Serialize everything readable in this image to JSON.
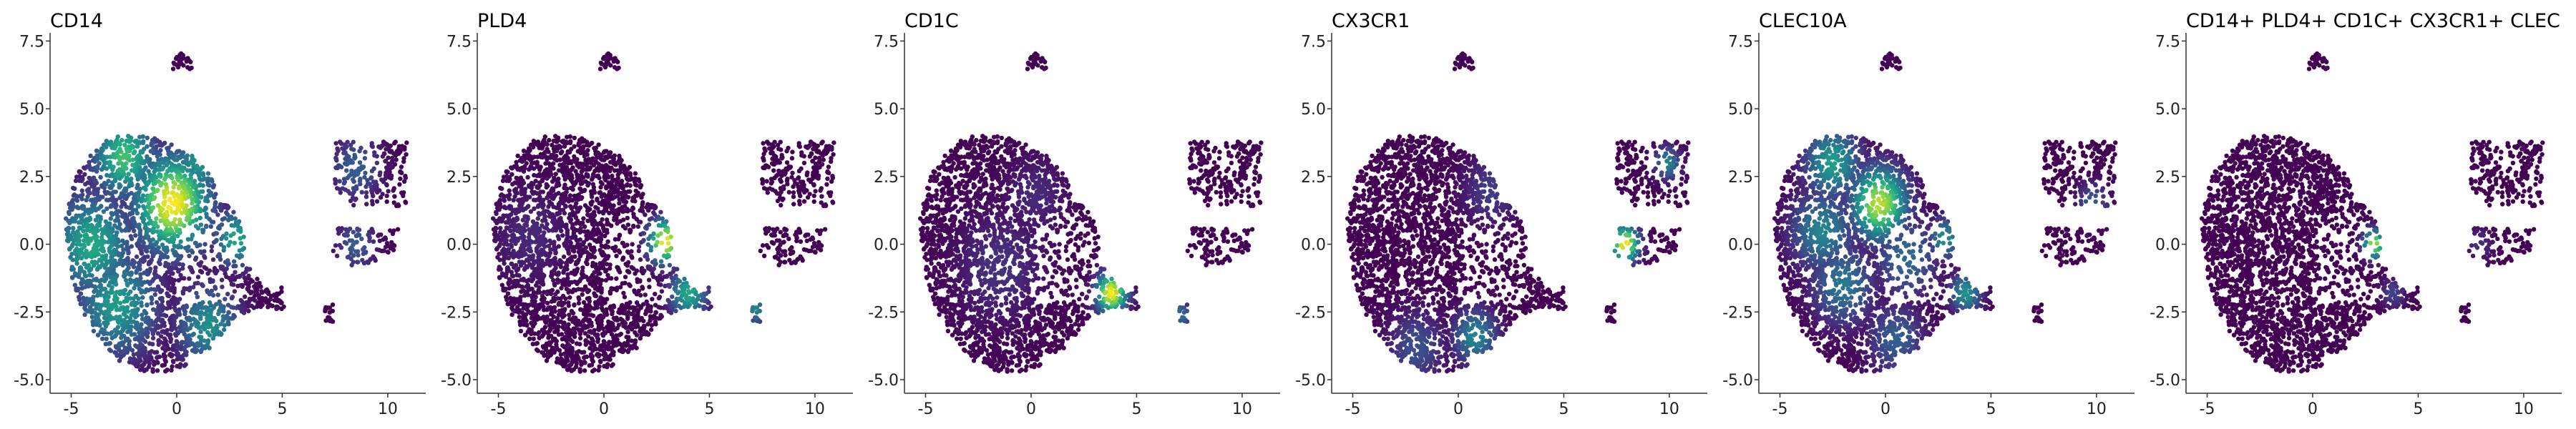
{
  "chart_data": [
    {
      "type": "scatter",
      "title": "CD14",
      "xlim": [
        -6,
        11.8
      ],
      "ylim": [
        -5.5,
        7.8
      ],
      "xticks": [
        -5,
        0,
        5,
        10
      ],
      "yticks": [
        -5.0,
        -2.5,
        0.0,
        2.5,
        5.0,
        7.5
      ],
      "xtick_labels": [
        "-5",
        "0",
        "5",
        "10"
      ],
      "ytick_labels": [
        "-5.0",
        "-2.5",
        "0.0",
        "2.5",
        "5.0",
        "7.5"
      ],
      "colormap": "viridis",
      "hotspots": [
        {
          "x": -0.2,
          "y": 1.5,
          "spread": 1.2,
          "level": 1.0
        },
        {
          "x": -2.5,
          "y": 3.2,
          "spread": 1.0,
          "level": 0.7
        },
        {
          "x": -4.0,
          "y": 0.0,
          "spread": 1.3,
          "level": 0.6
        },
        {
          "x": -2.8,
          "y": -2.2,
          "spread": 1.3,
          "level": 0.55
        },
        {
          "x": 1.5,
          "y": -3.0,
          "spread": 1.0,
          "level": 0.5
        },
        {
          "x": 2.8,
          "y": 0.2,
          "spread": 0.7,
          "level": 0.6
        },
        {
          "x": 1.0,
          "y": 3.0,
          "spread": 0.9,
          "level": 0.5
        },
        {
          "x": 8.5,
          "y": 2.8,
          "spread": 0.8,
          "level": 0.3
        },
        {
          "x": 8.5,
          "y": 0.0,
          "spread": 0.6,
          "level": 0.3
        }
      ]
    },
    {
      "type": "scatter",
      "title": "PLD4",
      "xlim": [
        -6,
        11.8
      ],
      "ylim": [
        -5.5,
        7.8
      ],
      "xticks": [
        -5,
        0,
        5,
        10
      ],
      "yticks": [
        -5.0,
        -2.5,
        0.0,
        2.5,
        5.0,
        7.5
      ],
      "xtick_labels": [
        "-5",
        "0",
        "5",
        "10"
      ],
      "ytick_labels": [
        "-5.0",
        "-2.5",
        "0.0",
        "2.5",
        "5.0",
        "7.5"
      ],
      "colormap": "viridis",
      "hotspots": [
        {
          "x": 2.9,
          "y": 0.1,
          "spread": 0.55,
          "level": 1.0
        },
        {
          "x": 4.0,
          "y": -1.8,
          "spread": 0.6,
          "level": 0.6
        },
        {
          "x": 7.2,
          "y": -2.4,
          "spread": 0.35,
          "level": 0.45
        },
        {
          "x": -3.5,
          "y": 0.3,
          "spread": 1.2,
          "level": 0.12
        }
      ]
    },
    {
      "type": "scatter",
      "title": "CD1C",
      "xlim": [
        -6,
        11.8
      ],
      "ylim": [
        -5.5,
        7.8
      ],
      "xticks": [
        -5,
        0,
        5,
        10
      ],
      "yticks": [
        -5.0,
        -2.5,
        0.0,
        2.5,
        5.0,
        7.5
      ],
      "xtick_labels": [
        "-5",
        "0",
        "5",
        "10"
      ],
      "ytick_labels": [
        "-5.0",
        "-2.5",
        "0.0",
        "2.5",
        "5.0",
        "7.5"
      ],
      "colormap": "viridis",
      "hotspots": [
        {
          "x": 3.8,
          "y": -1.8,
          "spread": 0.5,
          "level": 1.0
        },
        {
          "x": 7.1,
          "y": -2.6,
          "spread": 0.35,
          "level": 0.35
        },
        {
          "x": -1.5,
          "y": -0.8,
          "spread": 1.4,
          "level": 0.15
        },
        {
          "x": 0.2,
          "y": 1.8,
          "spread": 1.0,
          "level": 0.12
        }
      ]
    },
    {
      "type": "scatter",
      "title": "CX3CR1",
      "xlim": [
        -6,
        11.8
      ],
      "ylim": [
        -5.5,
        7.8
      ],
      "xticks": [
        -5,
        0,
        5,
        10
      ],
      "yticks": [
        -5.0,
        -2.5,
        0.0,
        2.5,
        5.0,
        7.5
      ],
      "xtick_labels": [
        "-5",
        "0",
        "5",
        "10"
      ],
      "ytick_labels": [
        "-5.0",
        "-2.5",
        "0.0",
        "2.5",
        "5.0",
        "7.5"
      ],
      "colormap": "viridis",
      "hotspots": [
        {
          "x": 7.9,
          "y": 0.0,
          "spread": 0.45,
          "level": 1.0
        },
        {
          "x": 9.9,
          "y": 3.0,
          "spread": 0.4,
          "level": 0.45
        },
        {
          "x": 0.8,
          "y": -3.4,
          "spread": 0.7,
          "level": 0.45
        },
        {
          "x": -2.0,
          "y": -3.8,
          "spread": 0.9,
          "level": 0.25
        },
        {
          "x": 1.5,
          "y": 2.0,
          "spread": 0.9,
          "level": 0.18
        }
      ]
    },
    {
      "type": "scatter",
      "title": "CLEC10A",
      "xlim": [
        -6,
        11.8
      ],
      "ylim": [
        -5.5,
        7.8
      ],
      "xticks": [
        -5,
        0,
        5,
        10
      ],
      "yticks": [
        -5.0,
        -2.5,
        0.0,
        2.5,
        5.0,
        7.5
      ],
      "xtick_labels": [
        "-5",
        "0",
        "5",
        "10"
      ],
      "ytick_labels": [
        "-5.0",
        "-2.5",
        "0.0",
        "2.5",
        "5.0",
        "7.5"
      ],
      "colormap": "viridis",
      "hotspots": [
        {
          "x": -0.3,
          "y": 1.5,
          "spread": 0.9,
          "level": 0.9
        },
        {
          "x": -2.5,
          "y": 3.0,
          "spread": 0.9,
          "level": 0.55
        },
        {
          "x": -3.0,
          "y": 0.5,
          "spread": 1.0,
          "level": 0.45
        },
        {
          "x": -2.0,
          "y": -1.5,
          "spread": 1.0,
          "level": 0.4
        },
        {
          "x": 1.0,
          "y": -0.5,
          "spread": 1.0,
          "level": 0.35
        },
        {
          "x": 2.8,
          "y": 0.2,
          "spread": 0.5,
          "level": 0.5
        },
        {
          "x": 3.8,
          "y": -1.8,
          "spread": 0.5,
          "level": 0.5
        },
        {
          "x": 0.5,
          "y": -3.5,
          "spread": 0.9,
          "level": 0.3
        },
        {
          "x": 9.8,
          "y": 1.5,
          "spread": 0.5,
          "level": 0.3
        }
      ]
    },
    {
      "type": "scatter",
      "title": "CD14+ PLD4+ CD1C+ CX3CR1+ CLEC",
      "xlim": [
        -6,
        11.8
      ],
      "ylim": [
        -5.5,
        7.8
      ],
      "xticks": [
        -5,
        0,
        5,
        10
      ],
      "yticks": [
        -5.0,
        -2.5,
        0.0,
        2.5,
        5.0,
        7.5
      ],
      "xtick_labels": [
        "-5",
        "0",
        "5",
        "10"
      ],
      "ytick_labels": [
        "-5.0",
        "-2.5",
        "0.0",
        "2.5",
        "5.0",
        "7.5"
      ],
      "colormap": "viridis",
      "hotspots": [
        {
          "x": 2.9,
          "y": 0.0,
          "spread": 0.35,
          "level": 0.9
        },
        {
          "x": 3.8,
          "y": -1.8,
          "spread": 0.4,
          "level": 0.2
        },
        {
          "x": 7.9,
          "y": 0.0,
          "spread": 0.4,
          "level": 0.15
        }
      ]
    }
  ]
}
